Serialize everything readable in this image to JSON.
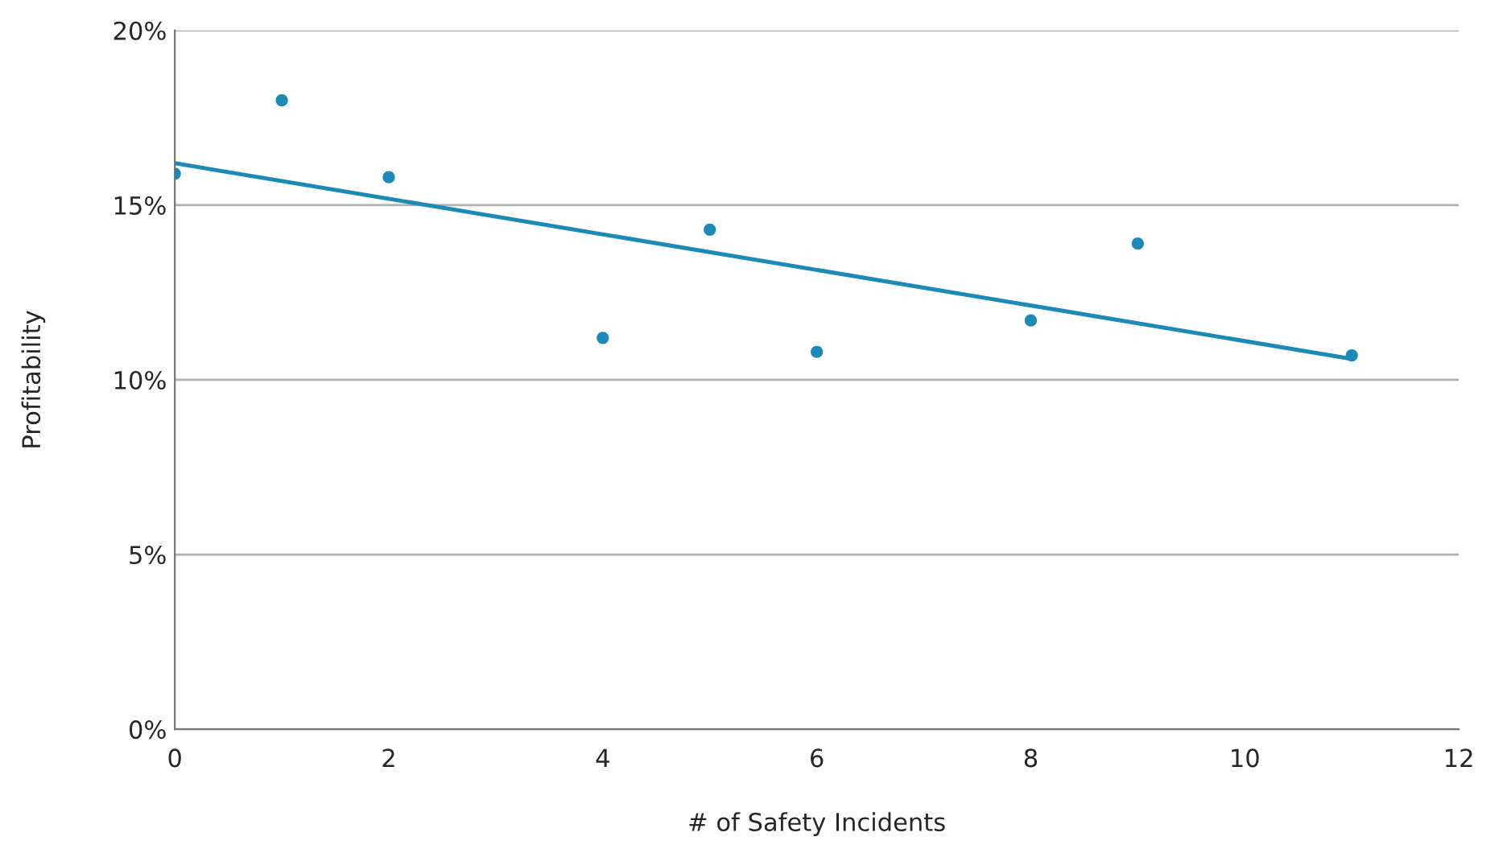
{
  "chart_data": {
    "type": "scatter",
    "xlabel": "# of Safety Incidents",
    "ylabel": "Profitability",
    "x": [
      0,
      1,
      2,
      4,
      5,
      6,
      8,
      9,
      11
    ],
    "series": [
      {
        "color": "#1c8ab6",
        "values": [
          15.9,
          18.0,
          15.8,
          11.2,
          14.3,
          10.8,
          11.7,
          13.9,
          10.7
        ]
      },
      {
        "type": "line",
        "marker": "none",
        "color": "#1c8ab6",
        "x": [
          0,
          11
        ],
        "values": [
          16.2,
          10.6
        ]
      }
    ],
    "xlim": [
      0,
      12
    ],
    "xticks": [
      0,
      2,
      4,
      6,
      8,
      10,
      12
    ],
    "ylim": [
      0,
      20
    ],
    "yticks": [
      {
        "value": 0,
        "label": "0%"
      },
      {
        "value": 5,
        "label": "5%"
      },
      {
        "value": 10,
        "label": "10%"
      },
      {
        "value": 15,
        "label": "15%"
      },
      {
        "value": 20,
        "label": "20%"
      }
    ],
    "grid": "y",
    "marker": "circle",
    "line_style": "solid"
  }
}
